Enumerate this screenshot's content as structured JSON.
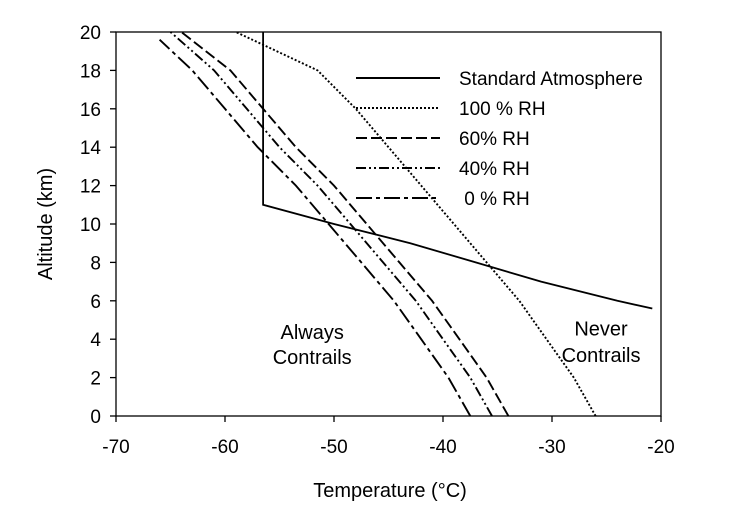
{
  "chart_data": {
    "type": "line",
    "title": "",
    "xlabel": "Temperature (°C)",
    "ylabel": "Altitude (km)",
    "xlim": [
      -70,
      -20
    ],
    "ylim": [
      0,
      20
    ],
    "xticks": [
      -70,
      -60,
      -50,
      -40,
      -30,
      -20
    ],
    "yticks": [
      0,
      2,
      4,
      6,
      8,
      10,
      12,
      14,
      16,
      18,
      20
    ],
    "grid": false,
    "legend_position": "top-right",
    "series": [
      {
        "name": "Standard Atmosphere",
        "dash": "solid",
        "points": [
          [
            -56.5,
            20
          ],
          [
            -56.5,
            11
          ],
          [
            -50,
            10
          ],
          [
            -43,
            9
          ],
          [
            -37,
            8
          ],
          [
            -31,
            7
          ],
          [
            -24,
            6
          ],
          [
            -20.8,
            5.6
          ]
        ]
      },
      {
        "name": "100 % RH",
        "dash": "dotted",
        "points": [
          [
            -26,
            0
          ],
          [
            -28,
            2
          ],
          [
            -30.5,
            4
          ],
          [
            -33,
            6
          ],
          [
            -36,
            8
          ],
          [
            -39,
            10
          ],
          [
            -42,
            12
          ],
          [
            -45,
            14
          ],
          [
            -48,
            16
          ],
          [
            -51.5,
            18
          ],
          [
            -59,
            20
          ]
        ]
      },
      {
        "name": "60% RH",
        "dash": "dashed",
        "points": [
          [
            -34,
            0
          ],
          [
            -36,
            2
          ],
          [
            -38.5,
            4
          ],
          [
            -41,
            6
          ],
          [
            -44,
            8
          ],
          [
            -47,
            10
          ],
          [
            -50,
            12
          ],
          [
            -53.5,
            14
          ],
          [
            -56.5,
            16
          ],
          [
            -59.5,
            18
          ],
          [
            -64,
            20
          ]
        ]
      },
      {
        "name": "40% RH",
        "dash": "dashdot",
        "points": [
          [
            -35.5,
            0
          ],
          [
            -37.5,
            2
          ],
          [
            -40,
            4
          ],
          [
            -42.5,
            6
          ],
          [
            -45.5,
            8
          ],
          [
            -48.5,
            10
          ],
          [
            -51.5,
            12
          ],
          [
            -55,
            14
          ],
          [
            -58,
            16
          ],
          [
            -61,
            18
          ],
          [
            -65,
            20
          ]
        ]
      },
      {
        "name": " 0 % RH",
        "dash": "longdash",
        "points": [
          [
            -37.5,
            0
          ],
          [
            -39.5,
            2
          ],
          [
            -42,
            4
          ],
          [
            -44.5,
            6
          ],
          [
            -47.5,
            8
          ],
          [
            -50.5,
            10
          ],
          [
            -53.5,
            12
          ],
          [
            -57,
            14
          ],
          [
            -60,
            16
          ],
          [
            -63,
            18
          ],
          [
            -66,
            19.6
          ]
        ]
      }
    ],
    "annotations": [
      {
        "text": "Always",
        "x": -52,
        "y": 4
      },
      {
        "text": "Contrails",
        "x": -52,
        "y": 2.7
      },
      {
        "text": "Never",
        "x": -25.5,
        "y": 4.2
      },
      {
        "text": "Contrails",
        "x": -25.5,
        "y": 2.8
      }
    ]
  }
}
